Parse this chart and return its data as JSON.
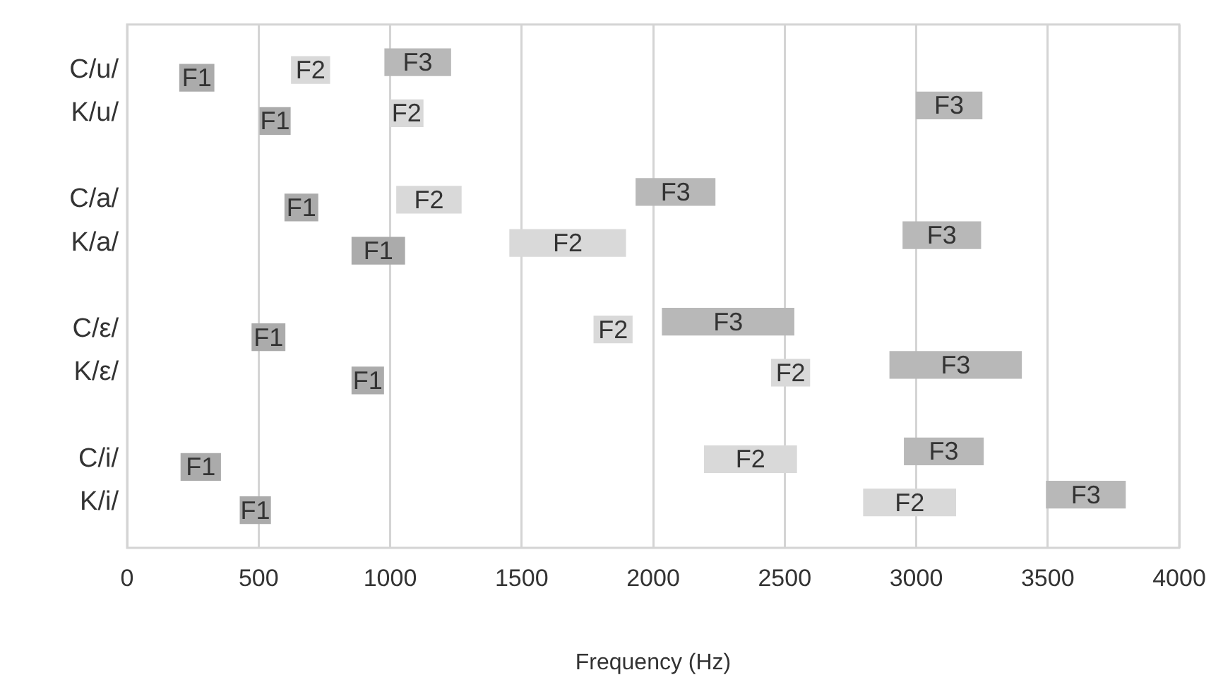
{
  "chart_data": {
    "type": "bar",
    "orientation": "horizontal",
    "xlabel": "Frequency (Hz)",
    "categories": [
      "C/u/",
      "K/u/",
      null,
      "C/a/",
      "K/a/",
      null,
      "C/ε/",
      "K/ε/",
      null,
      "C/i/",
      "K/i/"
    ],
    "series": [
      {
        "name": "F1",
        "color": "#ababab",
        "base": [
          200,
          505,
          null,
          600,
          855,
          null,
          475,
          855,
          null,
          205,
          430
        ],
        "values": [
          130,
          115,
          null,
          125,
          200,
          null,
          125,
          120,
          null,
          150,
          115
        ]
      },
      {
        "name": "F2",
        "color": "#d9d9d9",
        "base": [
          625,
          1000,
          null,
          1025,
          1455,
          null,
          1775,
          2450,
          null,
          2195,
          2800
        ],
        "values": [
          145,
          125,
          null,
          245,
          440,
          null,
          145,
          145,
          null,
          350,
          350
        ]
      },
      {
        "name": "F3",
        "color": "#b8b8b8",
        "base": [
          980,
          3000,
          null,
          1935,
          2950,
          null,
          2035,
          2900,
          null,
          2955,
          3495
        ],
        "values": [
          250,
          250,
          null,
          300,
          295,
          null,
          500,
          500,
          null,
          300,
          300
        ]
      }
    ],
    "xlim": [
      0,
      4000
    ],
    "xticks": [
      0,
      500,
      1000,
      1500,
      2000,
      2500,
      3000,
      3500,
      4000
    ],
    "grid": "x"
  }
}
